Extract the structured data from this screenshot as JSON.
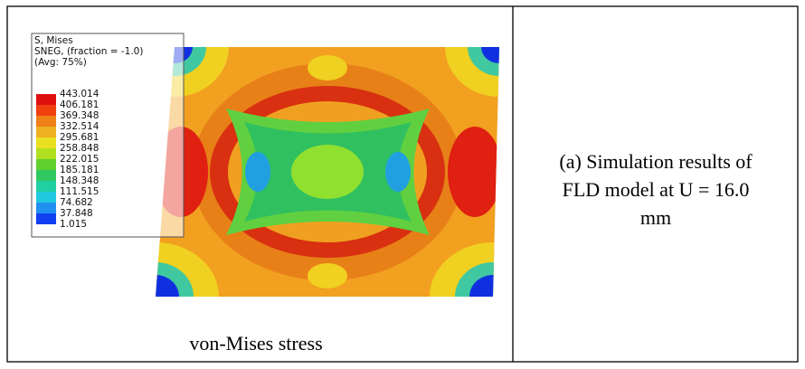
{
  "figure": {
    "legend": {
      "title_lines": [
        "S, Mises",
        "SNEG, (fraction = -1.0)",
        "(Avg: 75%)"
      ],
      "levels": [
        "443.014",
        "406.181",
        "369.348",
        "332.514",
        "295.681",
        "258.848",
        "222.015",
        "185.181",
        "148.348",
        "111.515",
        "74.682",
        "37.848",
        "1.015"
      ]
    },
    "caption": "von-Mises stress"
  },
  "description": {
    "lines": [
      "(a) Simulation results of",
      "FLD model at U = 16.0",
      "mm"
    ]
  }
}
